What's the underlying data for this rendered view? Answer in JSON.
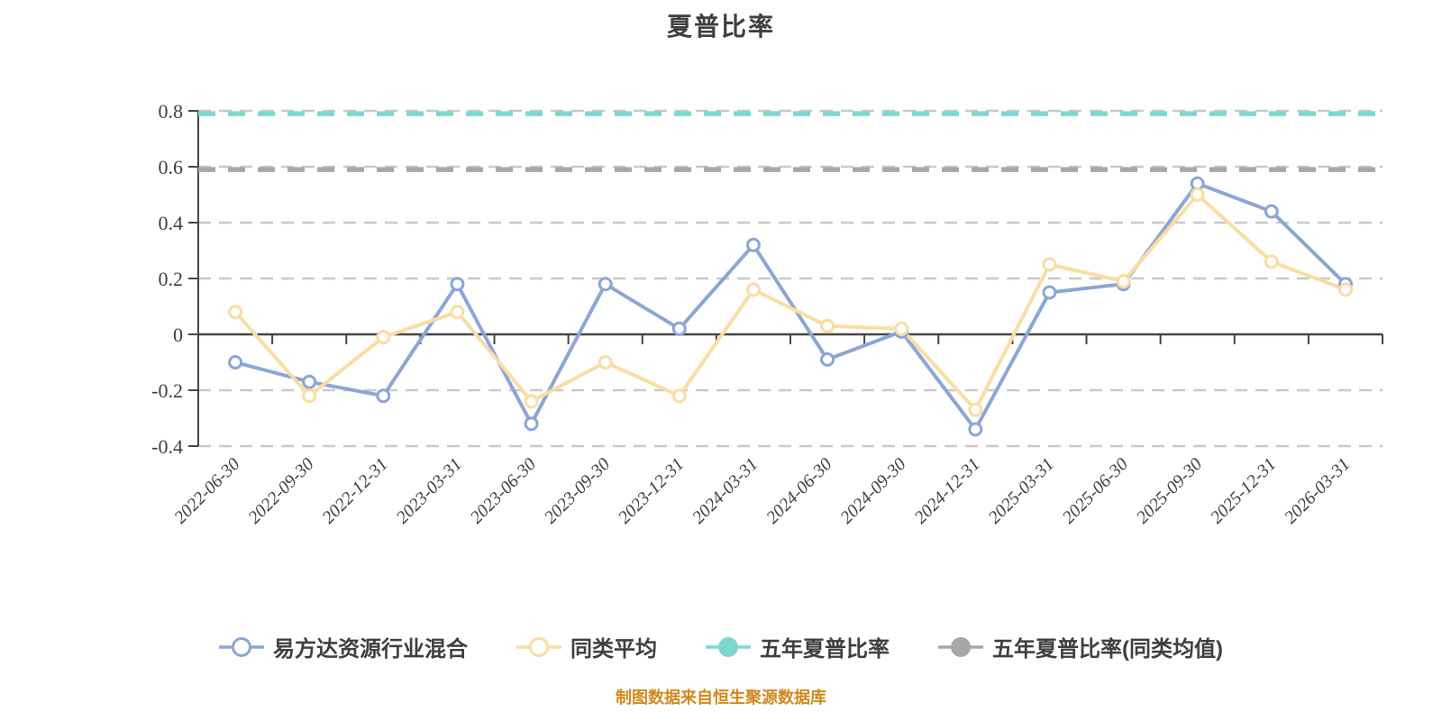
{
  "title": "夏普比率",
  "footer": "制图数据来自恒生聚源数据库",
  "colors": {
    "fund_blue": "#8BA6D6",
    "peer_yellow": "#FADDA2",
    "five_year_teal": "#7FD6D1",
    "five_year_gray": "#A7A7A7",
    "gridline": "#C9C9C9",
    "axis": "#454545",
    "text": "#3F3F3F",
    "footer_orange": "#D0891C"
  },
  "chart_data": {
    "type": "line",
    "title": "夏普比率",
    "xlabel": "",
    "ylabel": "",
    "ylim": [
      -0.4,
      0.8
    ],
    "yticks": [
      0.8,
      0.6,
      0.4,
      0.2,
      0,
      -0.2,
      -0.4
    ],
    "grid": "horizontal dashed",
    "legend_position": "bottom",
    "categories": [
      "2022-06-30",
      "2022-09-30",
      "2022-12-31",
      "2023-03-31",
      "2023-06-30",
      "2023-09-30",
      "2023-12-31",
      "2024-03-31",
      "2024-06-30",
      "2024-09-30",
      "2024-12-31",
      "2025-03-31",
      "2025-06-30",
      "2025-09-30",
      "2025-12-31",
      "2026-03-31"
    ],
    "series": [
      {
        "id": "fund",
        "name": "易方达资源行业混合",
        "color": "#8BA6D6",
        "marker": "hollow",
        "line_style": "solid",
        "values": [
          -0.1,
          -0.17,
          -0.22,
          0.18,
          -0.32,
          0.18,
          0.02,
          0.32,
          -0.09,
          0.01,
          -0.34,
          0.15,
          0.18,
          0.54,
          0.44,
          0.18
        ]
      },
      {
        "id": "peer-average",
        "name": "同类平均",
        "color": "#FADDA2",
        "marker": "hollow",
        "line_style": "solid",
        "values": [
          0.08,
          -0.22,
          -0.01,
          0.08,
          -0.24,
          -0.1,
          -0.22,
          0.16,
          0.03,
          0.02,
          -0.27,
          0.25,
          0.19,
          0.5,
          0.26,
          0.16
        ]
      },
      {
        "id": "five-year-sharpe",
        "name": "五年夏普比率",
        "color": "#7FD6D1",
        "marker": "filled",
        "line_style": "dashed",
        "constant_value": 0.79
      },
      {
        "id": "five-year-sharpe-peer-mean",
        "name": "五年夏普比率(同类均值)",
        "color": "#A7A7A7",
        "marker": "filled",
        "line_style": "dashed",
        "constant_value": 0.59
      }
    ]
  }
}
